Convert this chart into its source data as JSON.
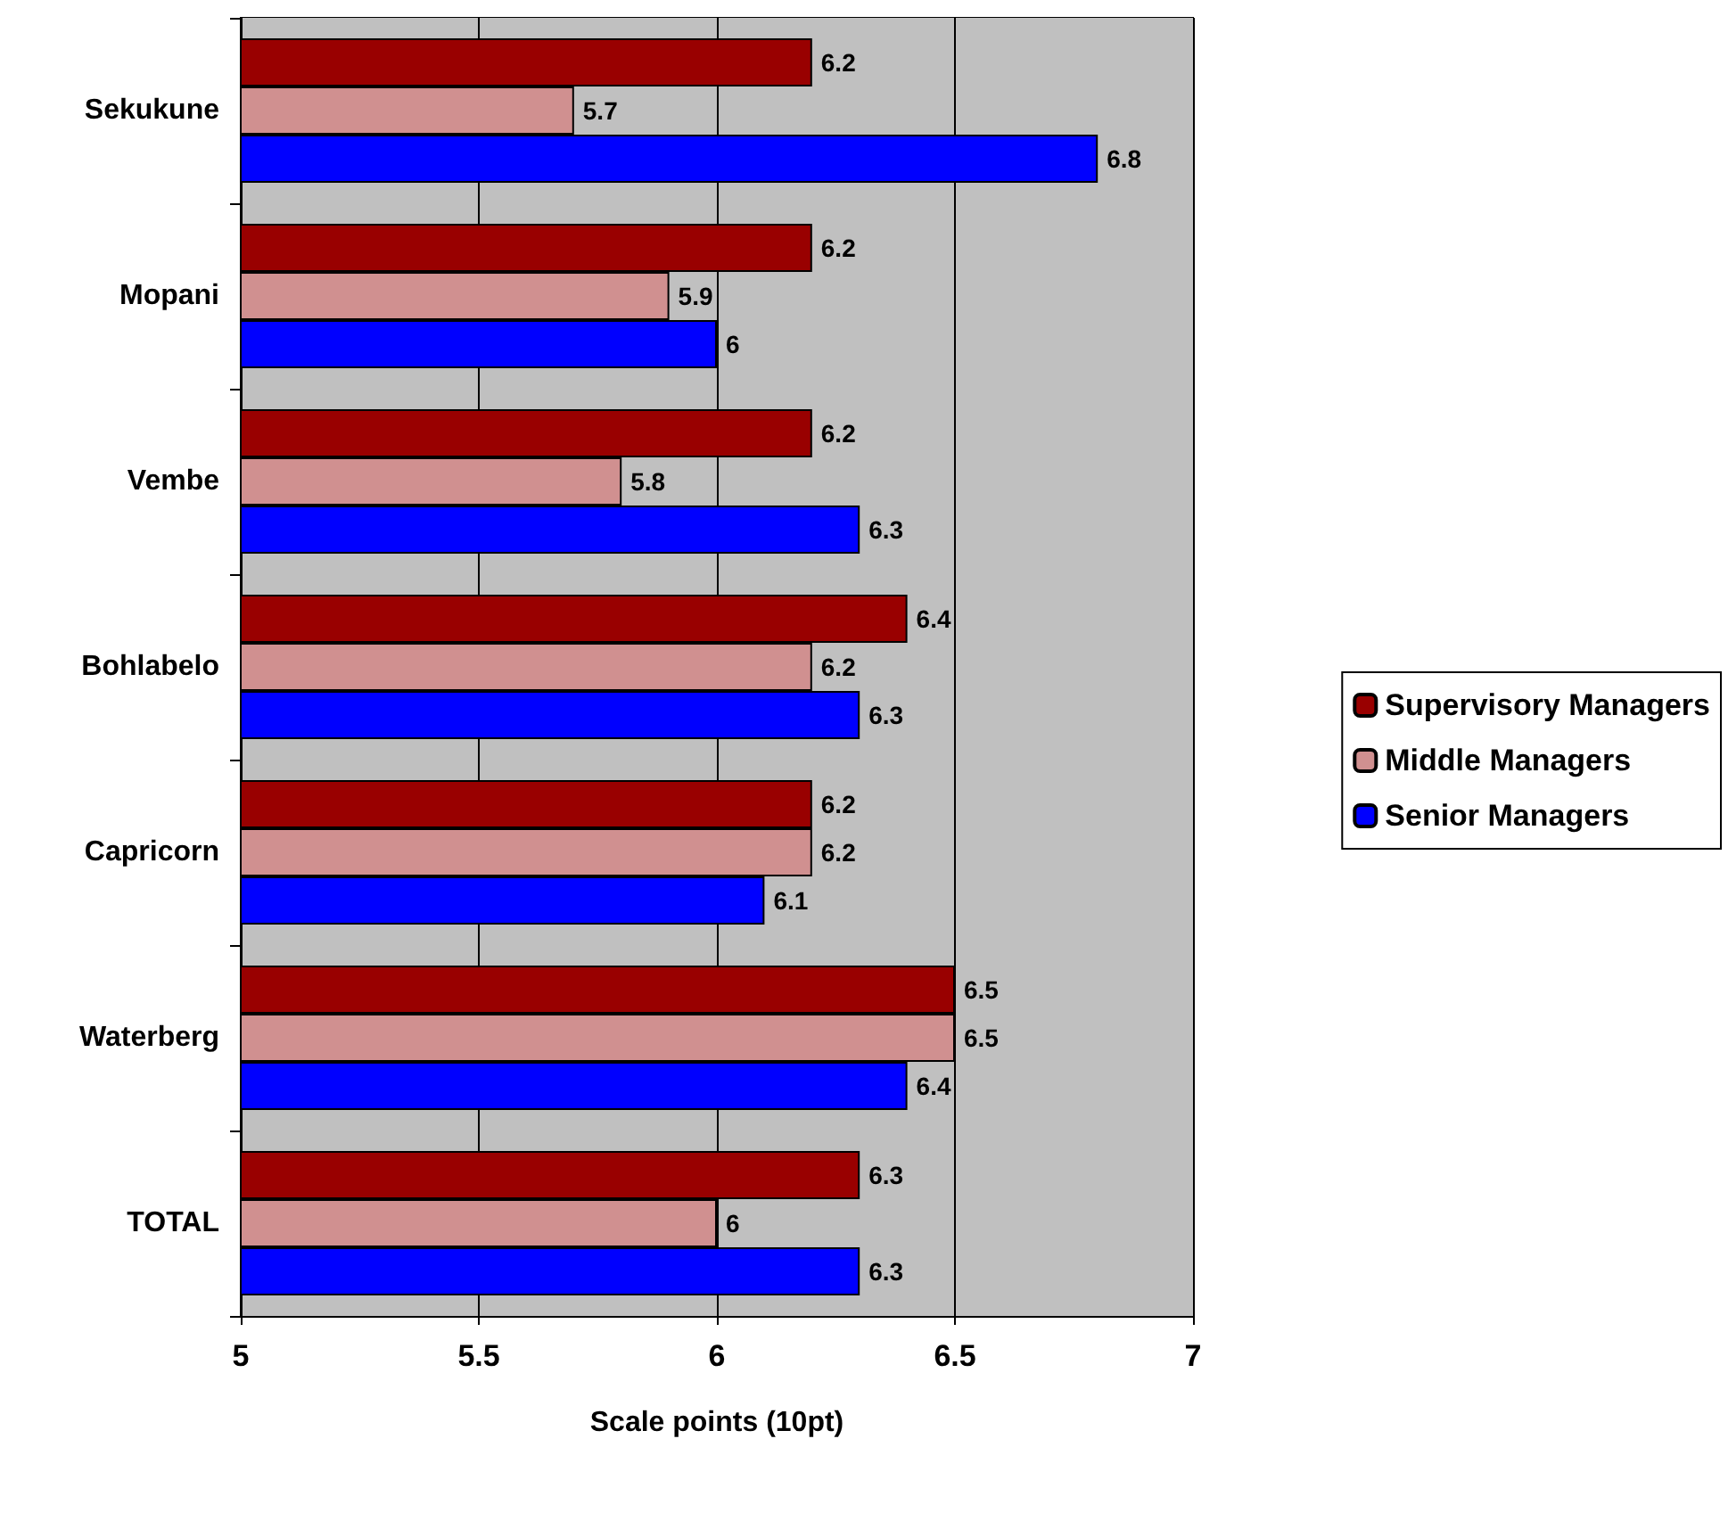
{
  "chart_data": {
    "type": "bar",
    "orientation": "horizontal",
    "categories": [
      "Sekukune",
      "Mopani",
      "Vembe",
      "Bohlabelo",
      "Capricorn",
      "Waterberg",
      "TOTAL"
    ],
    "series": [
      {
        "name": "Supervisory Managers",
        "color": "#990000",
        "values": [
          6.2,
          6.2,
          6.2,
          6.4,
          6.2,
          6.5,
          6.3
        ]
      },
      {
        "name": "Middle Managers",
        "color": "#d09090",
        "values": [
          5.7,
          5.9,
          5.8,
          6.2,
          6.2,
          6.5,
          6.0
        ]
      },
      {
        "name": "Senior Managers",
        "color": "#0000ff",
        "values": [
          6.8,
          6.0,
          6.3,
          6.3,
          6.1,
          6.4,
          6.3
        ]
      }
    ],
    "xlabel": "Scale points (10pt)",
    "xlim": [
      5,
      7
    ],
    "xticks": [
      5,
      5.5,
      6,
      6.5,
      7
    ],
    "grid": "x",
    "legend": "right",
    "data_labels": true
  }
}
